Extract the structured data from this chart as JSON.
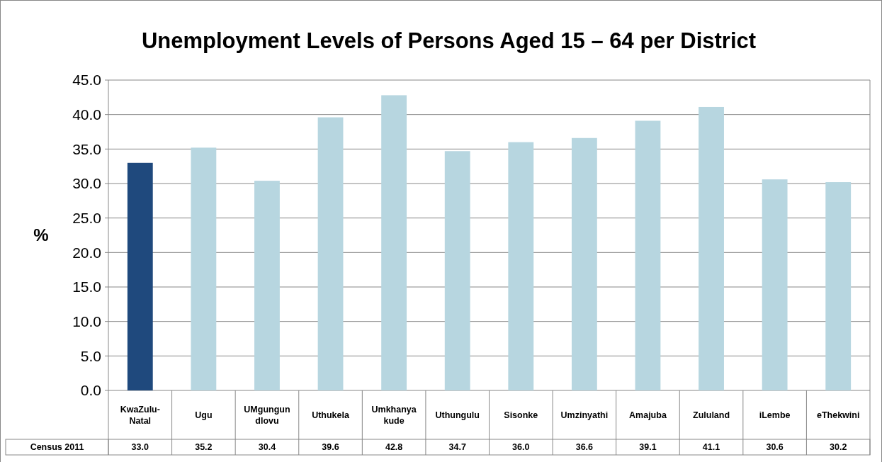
{
  "chart_data": {
    "type": "bar",
    "title": "Unemployment Levels of Persons Aged 15 – 64 per District",
    "ylabel": "%",
    "categories": [
      "KwaZulu-Natal",
      "Ugu",
      "UMgungundlovu",
      "Uthukela",
      "Umkhanyakude",
      "Uthungulu",
      "Sisonke",
      "Umzinyathi",
      "Amajuba",
      "Zululand",
      "iLembe",
      "eThekwini"
    ],
    "series": [
      {
        "name": "Census 2011",
        "colors": [
          "#1f497d",
          "#b7d6e0",
          "#b7d6e0",
          "#b7d6e0",
          "#b7d6e0",
          "#b7d6e0",
          "#b7d6e0",
          "#b7d6e0",
          "#b7d6e0",
          "#b7d6e0",
          "#b7d6e0",
          "#b7d6e0"
        ],
        "values": [
          33.0,
          35.2,
          30.4,
          39.6,
          42.8,
          34.7,
          36.0,
          36.6,
          39.1,
          41.1,
          30.6,
          30.2
        ],
        "value_labels": [
          "33.0",
          "35.2",
          "30.4",
          "39.6",
          "42.8",
          "34.7",
          "36.0",
          "36.6",
          "39.1",
          "41.1",
          "30.6",
          "30.2"
        ]
      }
    ],
    "ylim": [
      0,
      45
    ],
    "yticks": [
      {
        "value": 0,
        "label": "0.0"
      },
      {
        "value": 5,
        "label": "5.0"
      },
      {
        "value": 10,
        "label": "10.0"
      },
      {
        "value": 15,
        "label": "15.0"
      },
      {
        "value": 20,
        "label": "20.0"
      },
      {
        "value": 25,
        "label": "25.0"
      },
      {
        "value": 30,
        "label": "30.0"
      },
      {
        "value": 35,
        "label": "35.0"
      },
      {
        "value": 40,
        "label": "40.0"
      },
      {
        "value": 45,
        "label": "45.0"
      }
    ],
    "grid": "y"
  }
}
